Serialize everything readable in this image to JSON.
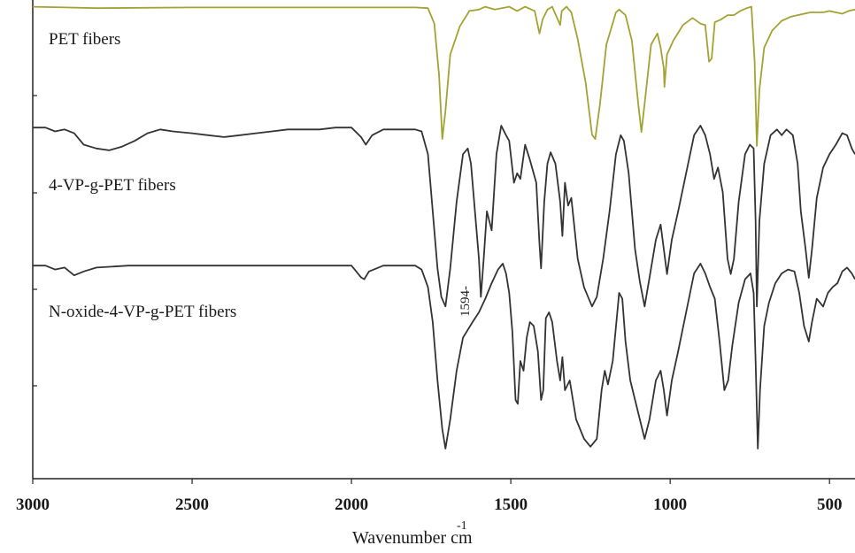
{
  "chart_data": {
    "type": "line",
    "title": "",
    "xlabel": "Wavenumber  cm",
    "xlabel_superscript": "-1",
    "ylabel": "",
    "xlim": [
      3000,
      420
    ],
    "x_reversed": true,
    "xticks": [
      3000,
      2500,
      2000,
      1500,
      1000,
      500
    ],
    "xtick_labels": [
      "3000",
      "2500",
      "2000",
      "1500",
      "1000",
      "500"
    ],
    "y_axis_tick_labels": false,
    "grid": false,
    "legend": "none",
    "annotation": {
      "text": "1594-",
      "x": 1594
    },
    "series": [
      {
        "name": "PET fibers",
        "color": "#a3a333",
        "points": [
          [
            3000,
            0.99
          ],
          [
            2900,
            0.985
          ],
          [
            2800,
            0.98
          ],
          [
            2500,
            0.985
          ],
          [
            2000,
            0.985
          ],
          [
            1800,
            0.985
          ],
          [
            1760,
            0.98
          ],
          [
            1740,
            0.87
          ],
          [
            1725,
            0.5
          ],
          [
            1715,
            0.05
          ],
          [
            1705,
            0.25
          ],
          [
            1690,
            0.65
          ],
          [
            1660,
            0.85
          ],
          [
            1630,
            0.96
          ],
          [
            1600,
            0.97
          ],
          [
            1580,
            0.99
          ],
          [
            1550,
            0.97
          ],
          [
            1505,
            0.99
          ],
          [
            1480,
            0.96
          ],
          [
            1455,
            0.99
          ],
          [
            1425,
            0.96
          ],
          [
            1410,
            0.8
          ],
          [
            1400,
            0.9
          ],
          [
            1385,
            0.97
          ],
          [
            1370,
            0.99
          ],
          [
            1345,
            0.86
          ],
          [
            1340,
            0.96
          ],
          [
            1325,
            0.99
          ],
          [
            1310,
            0.95
          ],
          [
            1290,
            0.76
          ],
          [
            1265,
            0.45
          ],
          [
            1245,
            0.08
          ],
          [
            1235,
            0.05
          ],
          [
            1220,
            0.3
          ],
          [
            1200,
            0.72
          ],
          [
            1170,
            0.95
          ],
          [
            1160,
            0.97
          ],
          [
            1140,
            0.93
          ],
          [
            1120,
            0.75
          ],
          [
            1100,
            0.3
          ],
          [
            1090,
            0.1
          ],
          [
            1080,
            0.3
          ],
          [
            1060,
            0.72
          ],
          [
            1040,
            0.8
          ],
          [
            1030,
            0.7
          ],
          [
            1020,
            0.55
          ],
          [
            1018,
            0.42
          ],
          [
            1010,
            0.65
          ],
          [
            990,
            0.75
          ],
          [
            960,
            0.86
          ],
          [
            930,
            0.91
          ],
          [
            905,
            0.87
          ],
          [
            890,
            0.86
          ],
          [
            878,
            0.6
          ],
          [
            870,
            0.62
          ],
          [
            860,
            0.88
          ],
          [
            840,
            0.9
          ],
          [
            820,
            0.93
          ],
          [
            800,
            0.93
          ],
          [
            780,
            0.96
          ],
          [
            760,
            0.98
          ],
          [
            745,
            0.99
          ],
          [
            735,
            0.6
          ],
          [
            728,
            0.0
          ],
          [
            720,
            0.4
          ],
          [
            705,
            0.7
          ],
          [
            680,
            0.82
          ],
          [
            650,
            0.89
          ],
          [
            620,
            0.92
          ],
          [
            600,
            0.93
          ],
          [
            560,
            0.95
          ],
          [
            520,
            0.95
          ],
          [
            500,
            0.96
          ],
          [
            480,
            0.95
          ],
          [
            460,
            0.94
          ],
          [
            440,
            0.96
          ],
          [
            420,
            0.97
          ]
        ]
      },
      {
        "name": "4-VP-g-PET fibers",
        "color": "#333333",
        "points": [
          [
            3000,
            0.99
          ],
          [
            2960,
            0.99
          ],
          [
            2930,
            0.97
          ],
          [
            2900,
            0.98
          ],
          [
            2870,
            0.96
          ],
          [
            2840,
            0.9
          ],
          [
            2800,
            0.88
          ],
          [
            2760,
            0.87
          ],
          [
            2720,
            0.89
          ],
          [
            2680,
            0.92
          ],
          [
            2640,
            0.96
          ],
          [
            2600,
            0.98
          ],
          [
            2560,
            0.97
          ],
          [
            2500,
            0.96
          ],
          [
            2450,
            0.95
          ],
          [
            2400,
            0.94
          ],
          [
            2350,
            0.95
          ],
          [
            2300,
            0.96
          ],
          [
            2250,
            0.97
          ],
          [
            2200,
            0.98
          ],
          [
            2100,
            0.98
          ],
          [
            2050,
            0.99
          ],
          [
            2000,
            0.99
          ],
          [
            1970,
            0.94
          ],
          [
            1955,
            0.9
          ],
          [
            1935,
            0.95
          ],
          [
            1900,
            0.98
          ],
          [
            1800,
            0.98
          ],
          [
            1780,
            0.97
          ],
          [
            1760,
            0.85
          ],
          [
            1745,
            0.55
          ],
          [
            1730,
            0.25
          ],
          [
            1718,
            0.1
          ],
          [
            1705,
            0.05
          ],
          [
            1690,
            0.25
          ],
          [
            1670,
            0.6
          ],
          [
            1650,
            0.85
          ],
          [
            1635,
            0.88
          ],
          [
            1625,
            0.8
          ],
          [
            1610,
            0.5
          ],
          [
            1600,
            0.3
          ],
          [
            1594,
            0.1
          ],
          [
            1585,
            0.3
          ],
          [
            1575,
            0.55
          ],
          [
            1560,
            0.45
          ],
          [
            1545,
            0.85
          ],
          [
            1530,
            1.0
          ],
          [
            1515,
            0.95
          ],
          [
            1505,
            0.92
          ],
          [
            1490,
            0.7
          ],
          [
            1480,
            0.75
          ],
          [
            1470,
            0.72
          ],
          [
            1455,
            0.9
          ],
          [
            1440,
            0.82
          ],
          [
            1420,
            0.7
          ],
          [
            1410,
            0.38
          ],
          [
            1405,
            0.25
          ],
          [
            1395,
            0.6
          ],
          [
            1385,
            0.8
          ],
          [
            1375,
            0.86
          ],
          [
            1360,
            0.8
          ],
          [
            1345,
            0.6
          ],
          [
            1338,
            0.42
          ],
          [
            1330,
            0.7
          ],
          [
            1320,
            0.58
          ],
          [
            1310,
            0.62
          ],
          [
            1290,
            0.3
          ],
          [
            1270,
            0.15
          ],
          [
            1245,
            0.05
          ],
          [
            1230,
            0.1
          ],
          [
            1210,
            0.3
          ],
          [
            1190,
            0.55
          ],
          [
            1170,
            0.85
          ],
          [
            1155,
            0.95
          ],
          [
            1145,
            0.92
          ],
          [
            1130,
            0.75
          ],
          [
            1110,
            0.35
          ],
          [
            1095,
            0.18
          ],
          [
            1080,
            0.05
          ],
          [
            1065,
            0.2
          ],
          [
            1045,
            0.4
          ],
          [
            1030,
            0.48
          ],
          [
            1020,
            0.35
          ],
          [
            1010,
            0.22
          ],
          [
            995,
            0.4
          ],
          [
            975,
            0.55
          ],
          [
            950,
            0.75
          ],
          [
            925,
            0.95
          ],
          [
            905,
            1.0
          ],
          [
            890,
            0.95
          ],
          [
            875,
            0.85
          ],
          [
            862,
            0.72
          ],
          [
            850,
            0.78
          ],
          [
            835,
            0.65
          ],
          [
            820,
            0.3
          ],
          [
            810,
            0.22
          ],
          [
            800,
            0.3
          ],
          [
            785,
            0.6
          ],
          [
            765,
            0.85
          ],
          [
            750,
            0.9
          ],
          [
            738,
            0.88
          ],
          [
            732,
            0.5
          ],
          [
            728,
            0.05
          ],
          [
            720,
            0.5
          ],
          [
            705,
            0.8
          ],
          [
            685,
            0.95
          ],
          [
            665,
            0.98
          ],
          [
            650,
            0.95
          ],
          [
            635,
            0.98
          ],
          [
            615,
            0.95
          ],
          [
            600,
            0.8
          ],
          [
            590,
            0.55
          ],
          [
            575,
            0.35
          ],
          [
            565,
            0.2
          ],
          [
            555,
            0.35
          ],
          [
            540,
            0.62
          ],
          [
            520,
            0.78
          ],
          [
            500,
            0.85
          ],
          [
            480,
            0.9
          ],
          [
            460,
            0.96
          ],
          [
            445,
            0.95
          ],
          [
            430,
            0.88
          ],
          [
            420,
            0.85
          ]
        ]
      },
      {
        "name": "N-oxide-4-VP-g-PET fibers",
        "color": "#333333",
        "points": [
          [
            3000,
            0.99
          ],
          [
            2960,
            0.99
          ],
          [
            2930,
            0.97
          ],
          [
            2900,
            0.98
          ],
          [
            2870,
            0.94
          ],
          [
            2840,
            0.96
          ],
          [
            2800,
            0.98
          ],
          [
            2700,
            0.99
          ],
          [
            2500,
            0.99
          ],
          [
            2000,
            0.99
          ],
          [
            1970,
            0.93
          ],
          [
            1960,
            0.92
          ],
          [
            1945,
            0.96
          ],
          [
            1900,
            0.99
          ],
          [
            1800,
            0.99
          ],
          [
            1780,
            0.97
          ],
          [
            1760,
            0.88
          ],
          [
            1745,
            0.7
          ],
          [
            1730,
            0.4
          ],
          [
            1715,
            0.15
          ],
          [
            1705,
            0.05
          ],
          [
            1690,
            0.2
          ],
          [
            1670,
            0.45
          ],
          [
            1650,
            0.62
          ],
          [
            1635,
            0.66
          ],
          [
            1620,
            0.7
          ],
          [
            1600,
            0.75
          ],
          [
            1580,
            0.82
          ],
          [
            1560,
            0.9
          ],
          [
            1540,
            0.97
          ],
          [
            1525,
            1.0
          ],
          [
            1515,
            0.95
          ],
          [
            1505,
            0.85
          ],
          [
            1495,
            0.65
          ],
          [
            1485,
            0.3
          ],
          [
            1478,
            0.28
          ],
          [
            1470,
            0.5
          ],
          [
            1460,
            0.45
          ],
          [
            1450,
            0.62
          ],
          [
            1440,
            0.7
          ],
          [
            1428,
            0.68
          ],
          [
            1415,
            0.55
          ],
          [
            1405,
            0.3
          ],
          [
            1398,
            0.35
          ],
          [
            1390,
            0.72
          ],
          [
            1380,
            0.75
          ],
          [
            1370,
            0.7
          ],
          [
            1355,
            0.5
          ],
          [
            1345,
            0.4
          ],
          [
            1338,
            0.52
          ],
          [
            1330,
            0.35
          ],
          [
            1315,
            0.4
          ],
          [
            1295,
            0.2
          ],
          [
            1270,
            0.1
          ],
          [
            1250,
            0.06
          ],
          [
            1230,
            0.1
          ],
          [
            1215,
            0.35
          ],
          [
            1205,
            0.45
          ],
          [
            1195,
            0.38
          ],
          [
            1180,
            0.5
          ],
          [
            1160,
            0.85
          ],
          [
            1150,
            0.82
          ],
          [
            1140,
            0.6
          ],
          [
            1125,
            0.4
          ],
          [
            1110,
            0.3
          ],
          [
            1095,
            0.2
          ],
          [
            1080,
            0.1
          ],
          [
            1065,
            0.2
          ],
          [
            1045,
            0.4
          ],
          [
            1030,
            0.45
          ],
          [
            1020,
            0.35
          ],
          [
            1010,
            0.22
          ],
          [
            995,
            0.4
          ],
          [
            975,
            0.55
          ],
          [
            950,
            0.75
          ],
          [
            925,
            0.95
          ],
          [
            905,
            1.0
          ],
          [
            890,
            0.95
          ],
          [
            875,
            0.88
          ],
          [
            860,
            0.82
          ],
          [
            845,
            0.6
          ],
          [
            830,
            0.35
          ],
          [
            818,
            0.4
          ],
          [
            805,
            0.58
          ],
          [
            785,
            0.8
          ],
          [
            765,
            0.92
          ],
          [
            748,
            0.95
          ],
          [
            738,
            0.85
          ],
          [
            732,
            0.5
          ],
          [
            725,
            0.05
          ],
          [
            718,
            0.35
          ],
          [
            705,
            0.68
          ],
          [
            690,
            0.8
          ],
          [
            670,
            0.9
          ],
          [
            650,
            0.95
          ],
          [
            630,
            0.97
          ],
          [
            610,
            0.96
          ],
          [
            595,
            0.85
          ],
          [
            580,
            0.68
          ],
          [
            565,
            0.6
          ],
          [
            555,
            0.7
          ],
          [
            540,
            0.82
          ],
          [
            520,
            0.78
          ],
          [
            505,
            0.85
          ],
          [
            490,
            0.88
          ],
          [
            475,
            0.9
          ],
          [
            460,
            0.96
          ],
          [
            445,
            0.98
          ],
          [
            430,
            0.95
          ],
          [
            420,
            0.92
          ]
        ]
      }
    ]
  }
}
